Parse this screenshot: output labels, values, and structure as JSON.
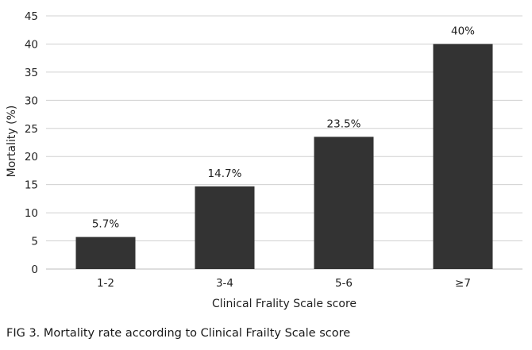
{
  "chart_data": {
    "type": "bar",
    "categories": [
      "1-2",
      "3-4",
      "5-6",
      "≥7"
    ],
    "values": [
      5.7,
      14.7,
      23.5,
      40
    ],
    "data_labels": [
      "5.7%",
      "14.7%",
      "23.5%",
      "40%"
    ],
    "ylabel": "Mortality (%)",
    "xlabel": "Clinical Frality Scale score",
    "ylim": [
      0,
      45
    ],
    "yticks": [
      0,
      5,
      10,
      15,
      20,
      25,
      30,
      35,
      40,
      45
    ],
    "grid": "horizontal",
    "bar_color": "#333333",
    "grid_color": "#d0d0d0"
  },
  "caption": "FIG 3.  Mortality rate according to Clinical Frailty Scale score"
}
